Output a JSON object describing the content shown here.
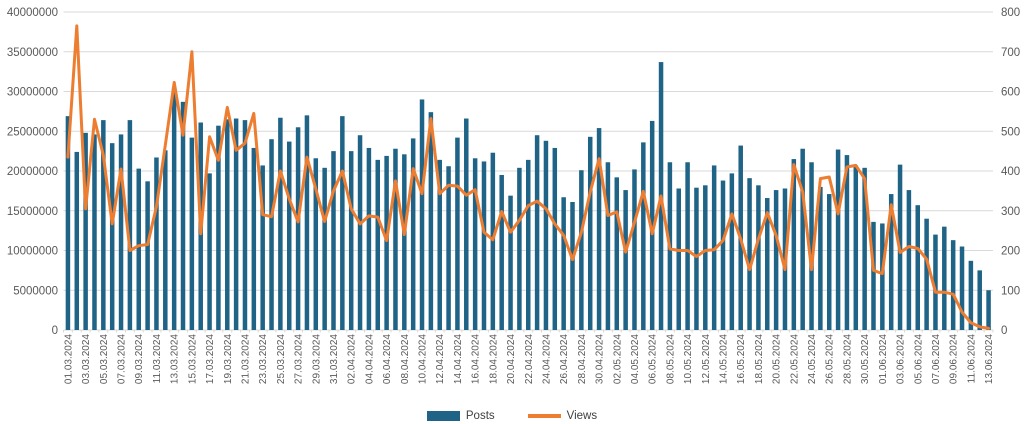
{
  "chart_data": {
    "type": "combo-bar-line",
    "title": "",
    "legend_position": "bottom",
    "x_label_step": 2,
    "colors": {
      "bars": "#1F6386",
      "line": "#ED7D31",
      "grid": "#D9D9D9",
      "axis_text": "#595959",
      "legend_text": "#404040"
    },
    "left_axis": {
      "min": 0,
      "max": 40000000,
      "step": 5000000,
      "tick_labels": [
        "0",
        "5000000",
        "10000000",
        "15000000",
        "20000000",
        "25000000",
        "30000000",
        "35000000",
        "40000000"
      ]
    },
    "right_axis": {
      "min": 0,
      "max": 800,
      "step": 100,
      "tick_labels": [
        "0",
        "100",
        "200",
        "300",
        "400",
        "500",
        "600",
        "700",
        "800"
      ]
    },
    "categories": [
      "01.03.2024",
      "02.03.2024",
      "03.03.2024",
      "04.03.2024",
      "05.03.2024",
      "06.03.2024",
      "07.03.2024",
      "08.03.2024",
      "09.03.2024",
      "10.03.2024",
      "11.03.2024",
      "12.03.2024",
      "13.03.2024",
      "14.03.2024",
      "15.03.2024",
      "16.03.2024",
      "17.03.2024",
      "18.03.2024",
      "19.03.2024",
      "20.03.2024",
      "21.03.2024",
      "22.03.2024",
      "23.03.2024",
      "24.03.2024",
      "25.03.2024",
      "26.03.2024",
      "27.03.2024",
      "28.03.2024",
      "29.03.2024",
      "30.03.2024",
      "31.03.2024",
      "01.04.2024",
      "02.04.2024",
      "03.04.2024",
      "04.04.2024",
      "05.04.2024",
      "06.04.2024",
      "07.04.2024",
      "08.04.2024",
      "09.04.2024",
      "10.04.2024",
      "11.04.2024",
      "12.04.2024",
      "13.04.2024",
      "14.04.2024",
      "15.04.2024",
      "16.04.2024",
      "17.04.2024",
      "18.04.2024",
      "19.04.2024",
      "20.04.2024",
      "21.04.2024",
      "22.04.2024",
      "23.04.2024",
      "24.04.2024",
      "25.04.2024",
      "26.04.2024",
      "27.04.2024",
      "28.04.2024",
      "29.04.2024",
      "30.04.2024",
      "01.05.2024",
      "02.05.2024",
      "03.05.2024",
      "04.05.2024",
      "05.05.2024",
      "06.05.2024",
      "07.05.2024",
      "08.05.2024",
      "09.05.2024",
      "10.05.2024",
      "11.05.2024",
      "12.05.2024",
      "13.05.2024",
      "14.05.2024",
      "15.05.2024",
      "16.05.2024",
      "17.05.2024",
      "18.05.2024",
      "19.05.2024",
      "20.05.2024",
      "21.05.2024",
      "22.05.2024",
      "23.05.2024",
      "24.05.2024",
      "25.05.2024",
      "26.05.2024",
      "27.05.2024",
      "28.05.2024",
      "29.05.2024",
      "30.05.2024",
      "31.05.2024",
      "01.06.2024",
      "02.06.2024",
      "03.06.2024",
      "04.06.2024",
      "05.06.2024",
      "06.06.2024",
      "07.06.2024",
      "08.06.2024",
      "09.06.2024",
      "10.06.2024",
      "11.06.2024",
      "12.06.2024",
      "13.06.2024"
    ],
    "series": [
      {
        "name": "Posts",
        "type": "bar",
        "y_axis": "left",
        "color": "#1F6386",
        "values": [
          26900000,
          22400000,
          24800000,
          24600000,
          26400000,
          23500000,
          24600000,
          26400000,
          20300000,
          18700000,
          21700000,
          22600000,
          30500000,
          28700000,
          24200000,
          26100000,
          19700000,
          25700000,
          26500000,
          26600000,
          26400000,
          22900000,
          20700000,
          24000000,
          26700000,
          23700000,
          25500000,
          27000000,
          21600000,
          20400000,
          22500000,
          26900000,
          22500000,
          24500000,
          22900000,
          21400000,
          21900000,
          22800000,
          22100000,
          24100000,
          29000000,
          27400000,
          21400000,
          20600000,
          24200000,
          26600000,
          21600000,
          21200000,
          22300000,
          19500000,
          16900000,
          20400000,
          21400000,
          24500000,
          23800000,
          22900000,
          16700000,
          16100000,
          20100000,
          24300000,
          25400000,
          21100000,
          19200000,
          17600000,
          20200000,
          23600000,
          26300000,
          33700000,
          21100000,
          17800000,
          21100000,
          17900000,
          18200000,
          20700000,
          18800000,
          19700000,
          23200000,
          19100000,
          18200000,
          16600000,
          17600000,
          17800000,
          21500000,
          22800000,
          21100000,
          18000000,
          17100000,
          22700000,
          22000000,
          20700000,
          20400000,
          13600000,
          13400000,
          17100000,
          20800000,
          17600000,
          15700000,
          14000000,
          12000000,
          13000000,
          11300000,
          10500000,
          8700000,
          7500000,
          5000000
        ]
      },
      {
        "name": "Views",
        "type": "line",
        "y_axis": "right",
        "color": "#ED7D31",
        "values": [
          435,
          765,
          305,
          530,
          440,
          267,
          405,
          200,
          212,
          215,
          310,
          465,
          623,
          490,
          700,
          242,
          486,
          427,
          560,
          452,
          470,
          545,
          290,
          285,
          400,
          330,
          272,
          435,
          355,
          273,
          350,
          400,
          305,
          267,
          287,
          284,
          225,
          375,
          240,
          406,
          343,
          532,
          343,
          364,
          362,
          339,
          353,
          246,
          227,
          298,
          246,
          276,
          313,
          324,
          305,
          267,
          238,
          177,
          246,
          347,
          431,
          288,
          297,
          196,
          271,
          349,
          242,
          337,
          204,
          200,
          200,
          185,
          200,
          202,
          225,
          292,
          229,
          152,
          229,
          295,
          238,
          152,
          416,
          347,
          152,
          381,
          385,
          292,
          410,
          414,
          381,
          150,
          142,
          315,
          195,
          210,
          205,
          178,
          95,
          95,
          90,
          45,
          18,
          8,
          4
        ]
      }
    ]
  },
  "legend": {
    "posts_label": "Posts",
    "views_label": "Views"
  }
}
